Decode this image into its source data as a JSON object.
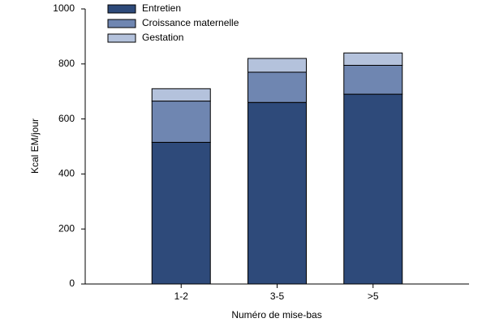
{
  "chart_data": {
    "type": "stacked_bar",
    "categories": [
      "1-2",
      "3-5",
      ">5"
    ],
    "series": [
      {
        "name": "Entretien",
        "color": "#2e4a7a",
        "values": [
          515,
          660,
          690
        ]
      },
      {
        "name": "Croissance maternelle",
        "color": "#6f86b1",
        "values": [
          150,
          110,
          105
        ]
      },
      {
        "name": "Gestation",
        "color": "#b4c2dc",
        "values": [
          45,
          50,
          45
        ]
      }
    ],
    "ylim": [
      0,
      1000
    ],
    "yticks": [
      0,
      200,
      400,
      600,
      800,
      1000
    ],
    "y_label": "Kcal EM/jour",
    "x_label": "Numéro de mise-bas",
    "legend": "top-left",
    "grid": false
  }
}
